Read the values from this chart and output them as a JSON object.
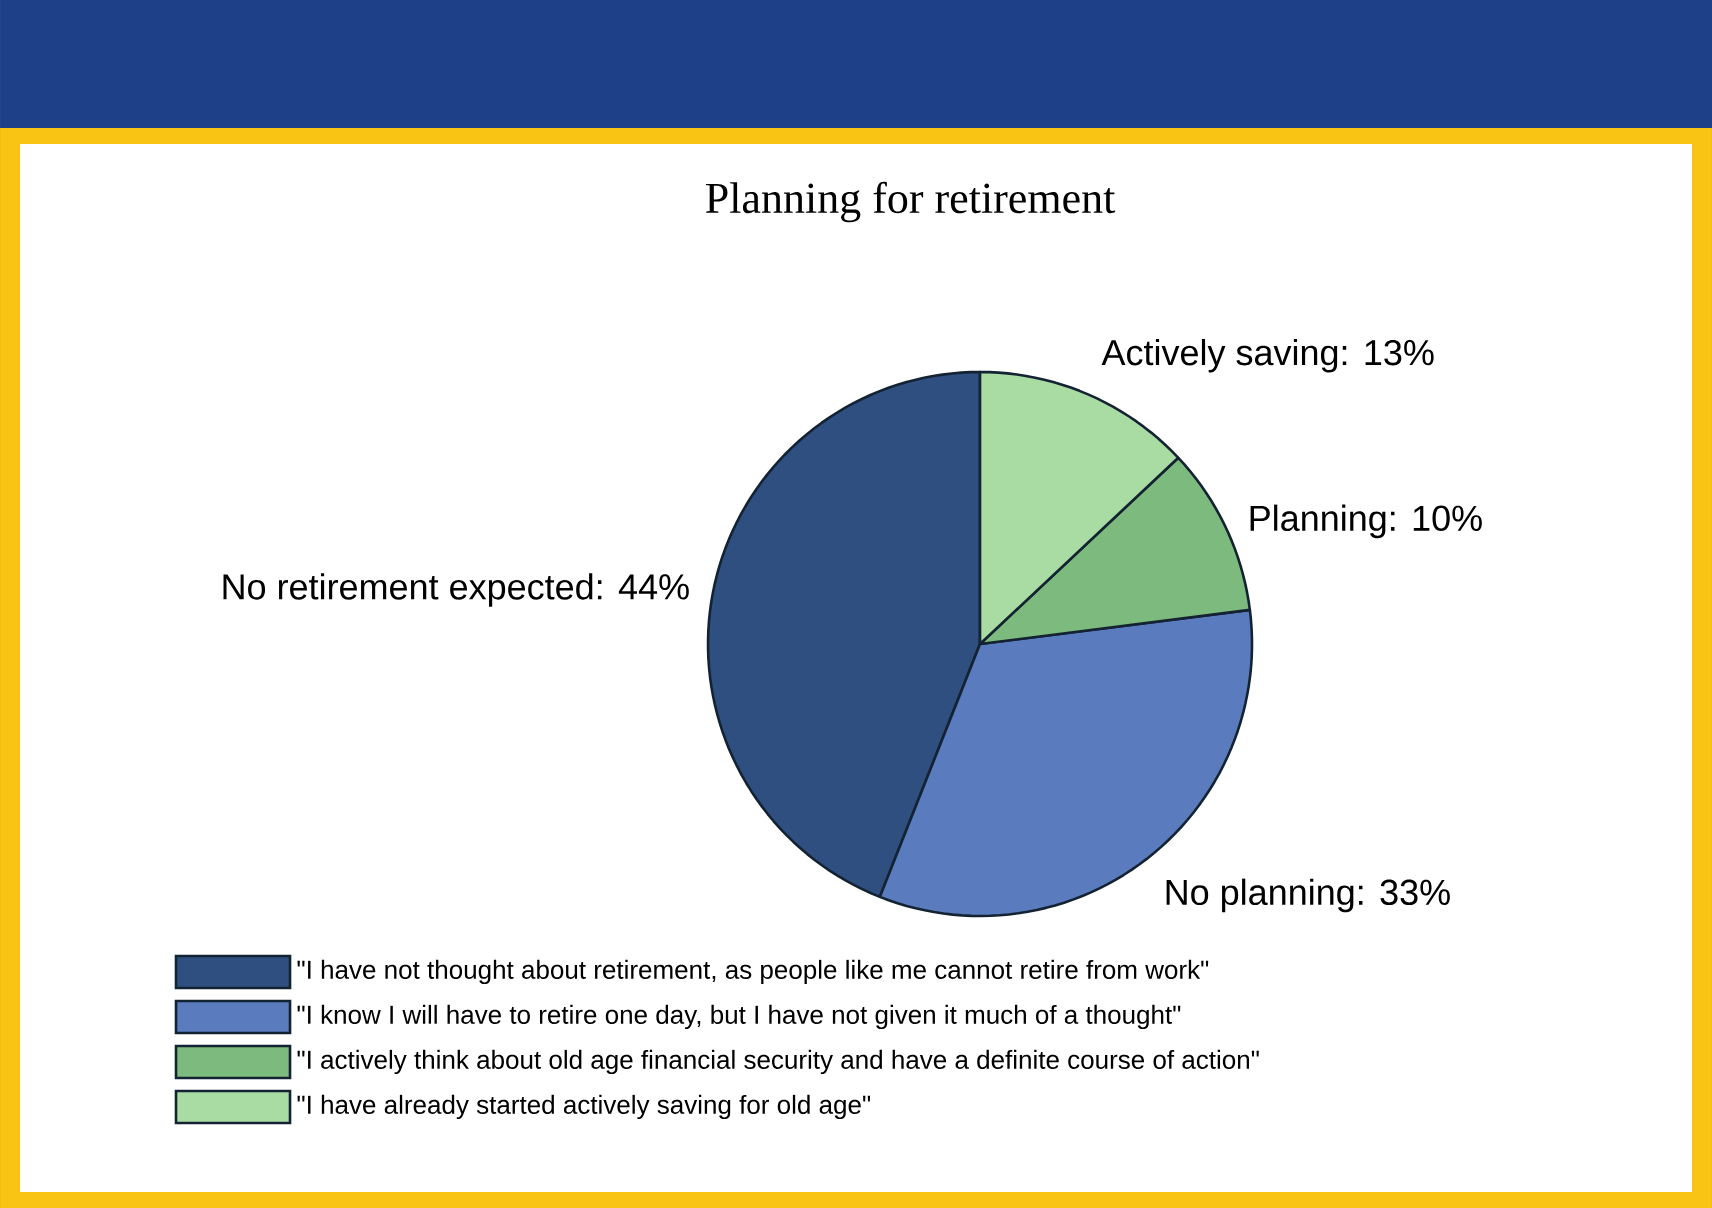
{
  "chart_data": {
    "type": "pie",
    "title": "Planning for retirement",
    "categories": [
      "\"I have not thought about retirement, as people like me cannot retire from work\"",
      "\"I know I will have to retire one day, but I have not given it much of a thought\"",
      "\"I actively think about old age financial security and have a definite course of action\"",
      "\"I have already started actively saving for old age\""
    ],
    "values": [
      44,
      33,
      10,
      13
    ],
    "colors": [
      "#2f4f80",
      "#5a7cbf",
      "#7dba7d",
      "#a8dca2"
    ],
    "value_labels": [
      "No retirement expected: 44%",
      "No planning: 33%",
      "Planning: 10%",
      "Actively saving: 13%"
    ],
    "legend": "bottom"
  }
}
